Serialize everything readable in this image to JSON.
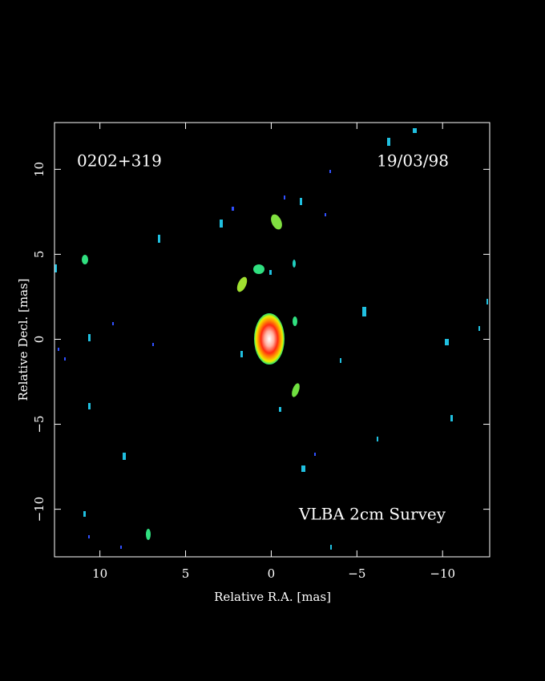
{
  "chart_data": {
    "type": "image",
    "title": "0202+319",
    "date": "19/03/98",
    "annotation": "VLBA 2cm Survey",
    "x_label": "Relative R.A. [mas]",
    "y_label": "Relative Decl. [mas]",
    "xlim": [
      12.65,
      -12.75
    ],
    "ylim": [
      -12.8,
      12.75
    ],
    "xticks": [
      10,
      5,
      0,
      {
        "value": -5,
        "label": "−5"
      },
      {
        "value": -10,
        "label": "−10"
      }
    ],
    "yticks": [
      {
        "value": -10,
        "label": "−10"
      },
      {
        "value": -5,
        "label": "−5"
      },
      0,
      5,
      10
    ]
  }
}
